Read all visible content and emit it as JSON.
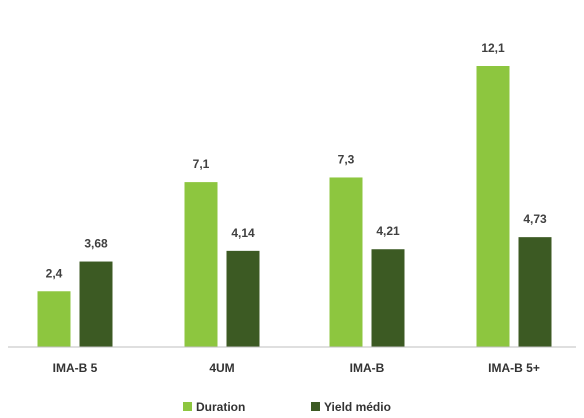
{
  "chart_data": {
    "type": "bar",
    "categories": [
      "IMA-B 5",
      "4UM",
      "IMA-B",
      "IMA-B 5+"
    ],
    "series": [
      {
        "name": "Duration",
        "values": [
          2.4,
          7.1,
          7.3,
          12.1
        ],
        "labels": [
          "2,4",
          "7,1",
          "7,3",
          "12,1"
        ],
        "color": "#8DC63F"
      },
      {
        "name": "Yield médio",
        "values": [
          3.68,
          4.14,
          4.21,
          4.73
        ],
        "labels": [
          "3,68",
          "4,14",
          "4,21",
          "4,73"
        ],
        "color": "#3C5A23"
      }
    ],
    "ylim": [
      0,
      14
    ],
    "grid": false,
    "legend_position": "bottom-center",
    "title": "",
    "xlabel": "",
    "ylabel": ""
  }
}
